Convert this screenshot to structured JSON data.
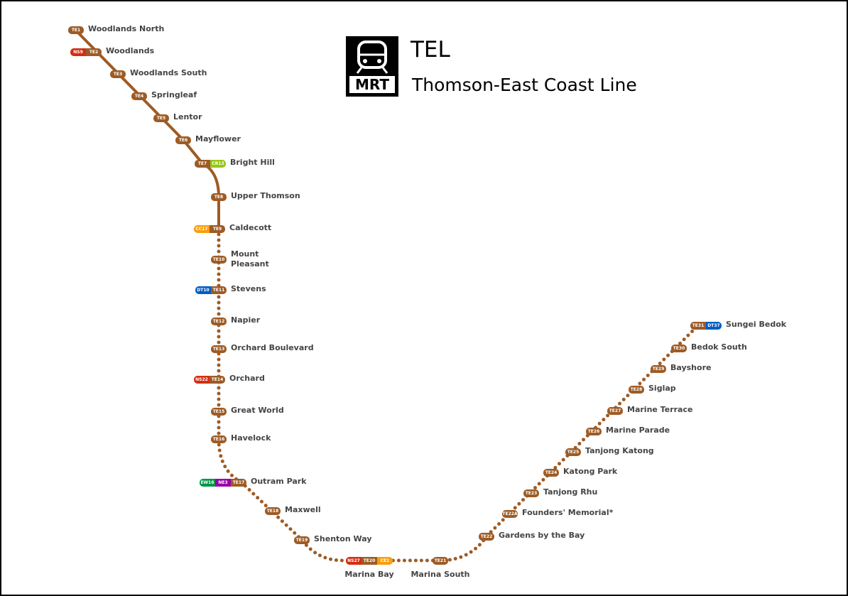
{
  "header": {
    "logo": "MRT",
    "code": "TEL",
    "name": "Thomson-East Coast Line"
  },
  "stations": [
    {
      "name": "Woodlands North",
      "codes": [
        {
          "code": "TE1",
          "color": "#9d5b25"
        }
      ]
    },
    {
      "name": "Woodlands",
      "codes": [
        {
          "code": "NS9",
          "color": "#d42e12"
        },
        {
          "code": "TE2",
          "color": "#9d5b25"
        }
      ]
    },
    {
      "name": "Woodlands South",
      "codes": [
        {
          "code": "TE3",
          "color": "#9d5b25"
        }
      ]
    },
    {
      "name": "Springleaf",
      "codes": [
        {
          "code": "TE4",
          "color": "#9d5b25"
        }
      ]
    },
    {
      "name": "Lentor",
      "codes": [
        {
          "code": "TE5",
          "color": "#9d5b25"
        }
      ]
    },
    {
      "name": "Mayflower",
      "codes": [
        {
          "code": "TE6",
          "color": "#9d5b25"
        }
      ]
    },
    {
      "name": "Bright Hill",
      "codes": [
        {
          "code": "TE7",
          "color": "#9d5b25"
        },
        {
          "code": "CR13",
          "color": "#97c616"
        }
      ]
    },
    {
      "name": "Upper Thomson",
      "codes": [
        {
          "code": "TE8",
          "color": "#9d5b25"
        }
      ]
    },
    {
      "name": "Caldecott",
      "codes": [
        {
          "code": "CC17",
          "color": "#fa9e0d"
        },
        {
          "code": "TE9",
          "color": "#9d5b25"
        }
      ]
    },
    {
      "name": "Mount Pleasant",
      "codes": [
        {
          "code": "TE10",
          "color": "#9d5b25"
        }
      ]
    },
    {
      "name": "Stevens",
      "codes": [
        {
          "code": "DT10",
          "color": "#005ec4"
        },
        {
          "code": "TE11",
          "color": "#9d5b25"
        }
      ]
    },
    {
      "name": "Napier",
      "codes": [
        {
          "code": "TE12",
          "color": "#9d5b25"
        }
      ]
    },
    {
      "name": "Orchard Boulevard",
      "codes": [
        {
          "code": "TE13",
          "color": "#9d5b25"
        }
      ]
    },
    {
      "name": "Orchard",
      "codes": [
        {
          "code": "NS22",
          "color": "#d42e12"
        },
        {
          "code": "TE14",
          "color": "#9d5b25"
        }
      ]
    },
    {
      "name": "Great World",
      "codes": [
        {
          "code": "TE15",
          "color": "#9d5b25"
        }
      ]
    },
    {
      "name": "Havelock",
      "codes": [
        {
          "code": "TE16",
          "color": "#9d5b25"
        }
      ]
    },
    {
      "name": "Outram Park",
      "codes": [
        {
          "code": "EW16",
          "color": "#009645"
        },
        {
          "code": "NE3",
          "color": "#9900aa"
        },
        {
          "code": "TE17",
          "color": "#9d5b25"
        }
      ]
    },
    {
      "name": "Maxwell",
      "codes": [
        {
          "code": "TE18",
          "color": "#9d5b25"
        }
      ]
    },
    {
      "name": "Shenton Way",
      "codes": [
        {
          "code": "TE19",
          "color": "#9d5b25"
        }
      ]
    },
    {
      "name": "Marina Bay",
      "codes": [
        {
          "code": "NS27",
          "color": "#d42e12"
        },
        {
          "code": "TE20",
          "color": "#9d5b25"
        },
        {
          "code": "CE1",
          "color": "#fa9e0d"
        }
      ]
    },
    {
      "name": "Marina South",
      "codes": [
        {
          "code": "TE21",
          "color": "#9d5b25"
        }
      ]
    },
    {
      "name": "Gardens by the Bay",
      "codes": [
        {
          "code": "TE22",
          "color": "#9d5b25"
        }
      ]
    },
    {
      "name": "Founders' Memorial*",
      "codes": [
        {
          "code": "TE22A",
          "color": "#9d5b25"
        }
      ]
    },
    {
      "name": "Tanjong Rhu",
      "codes": [
        {
          "code": "TE23",
          "color": "#9d5b25"
        }
      ]
    },
    {
      "name": "Katong Park",
      "codes": [
        {
          "code": "TE24",
          "color": "#9d5b25"
        }
      ]
    },
    {
      "name": "Tanjong Katong",
      "codes": [
        {
          "code": "TE25",
          "color": "#9d5b25"
        }
      ]
    },
    {
      "name": "Marine Parade",
      "codes": [
        {
          "code": "TE26",
          "color": "#9d5b25"
        }
      ]
    },
    {
      "name": "Marine Terrace",
      "codes": [
        {
          "code": "TE27",
          "color": "#9d5b25"
        }
      ]
    },
    {
      "name": "Siglap",
      "codes": [
        {
          "code": "TE28",
          "color": "#9d5b25"
        }
      ]
    },
    {
      "name": "Bayshore",
      "codes": [
        {
          "code": "TE29",
          "color": "#9d5b25"
        }
      ]
    },
    {
      "name": "Bedok South",
      "codes": [
        {
          "code": "TE30",
          "color": "#9d5b25"
        }
      ]
    },
    {
      "name": "Sungei Bedok",
      "codes": [
        {
          "code": "TE31",
          "color": "#9d5b25"
        },
        {
          "code": "DT37",
          "color": "#005ec4"
        }
      ]
    }
  ]
}
